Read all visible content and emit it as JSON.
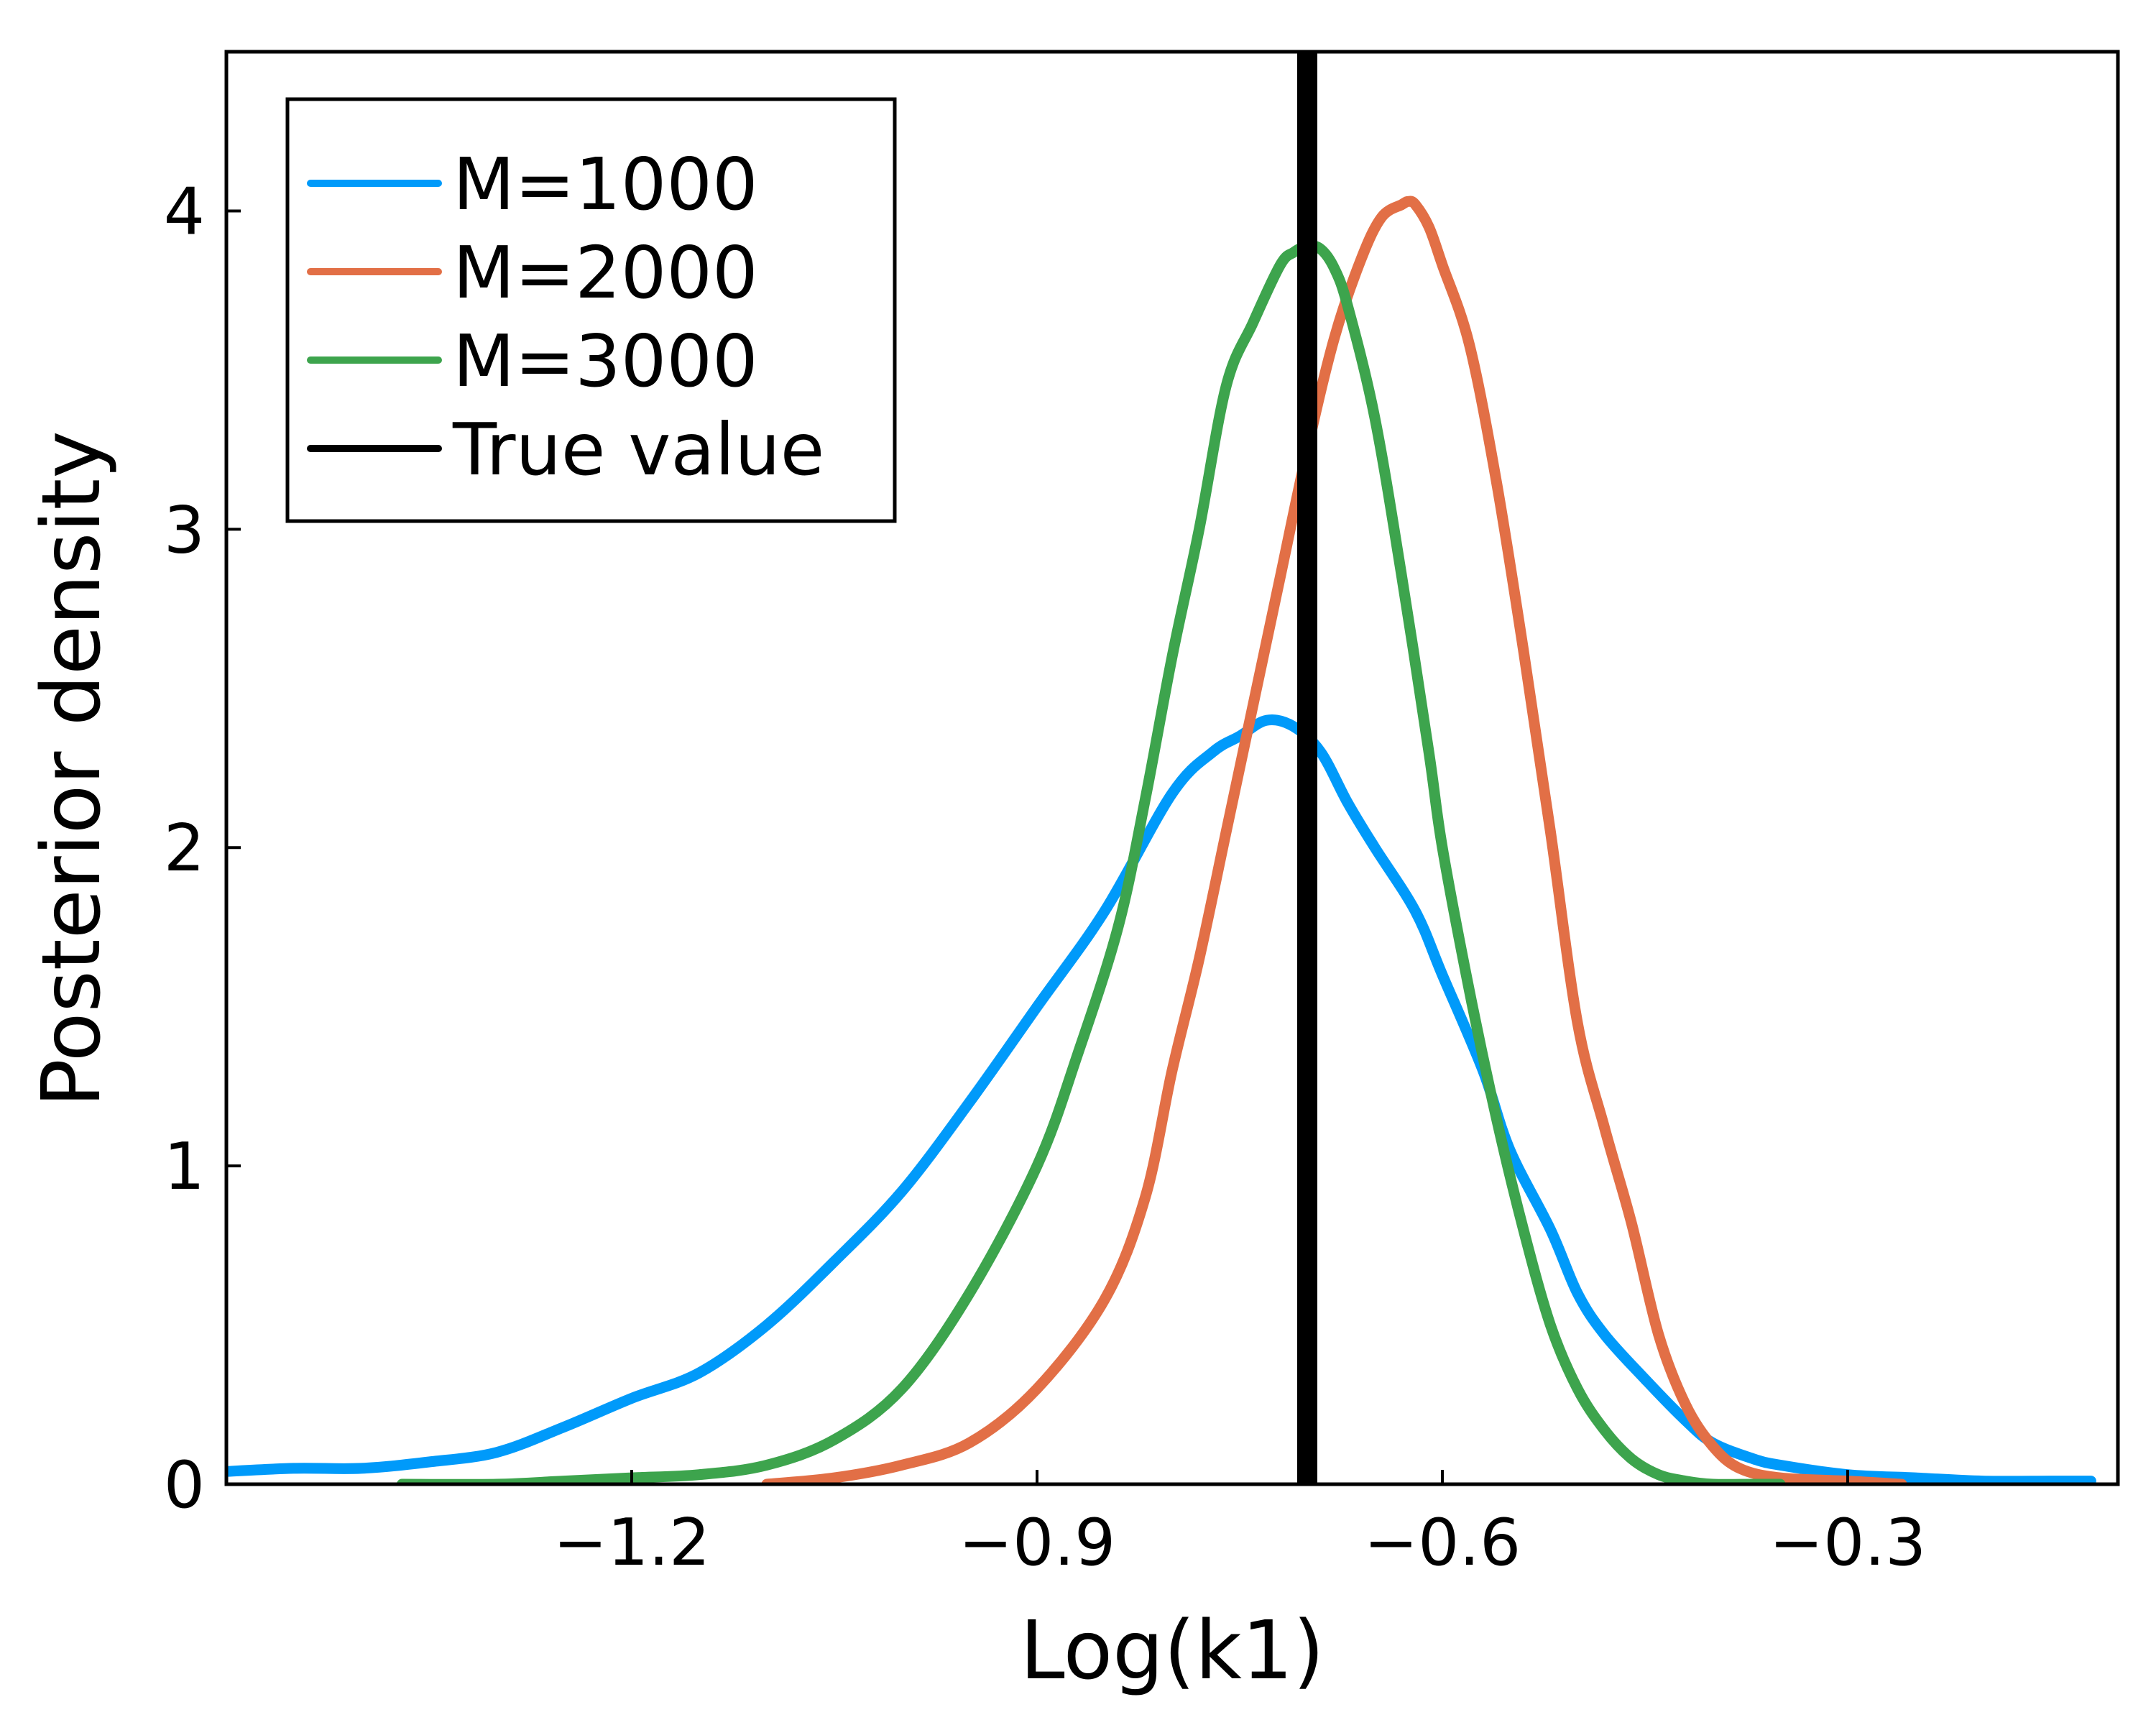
{
  "chart_data": {
    "type": "line",
    "title": "",
    "xlabel": "Log(k1)",
    "ylabel": "Posterior density",
    "xlim": [
      -1.5,
      -0.1
    ],
    "ylim": [
      0,
      4.5
    ],
    "x_ticks": [
      -1.2,
      -0.9,
      -0.6,
      -0.3
    ],
    "x_tick_labels": [
      "−1.2",
      "−0.9",
      "−0.6",
      "−0.3"
    ],
    "y_ticks": [
      0,
      1,
      2,
      3,
      4
    ],
    "y_tick_labels": [
      "0",
      "1",
      "2",
      "3",
      "4"
    ],
    "grid": false,
    "legend_position": "top-left",
    "true_value": -0.7,
    "true_value_label": "True value",
    "true_value_color": "#000000",
    "series": [
      {
        "name": "M=1000",
        "color": "#009AFA",
        "x": [
          -1.5,
          -1.45,
          -1.4,
          -1.35,
          -1.3,
          -1.25,
          -1.2,
          -1.15,
          -1.1,
          -1.05,
          -1.0,
          -0.95,
          -0.9,
          -0.85,
          -0.8,
          -0.77,
          -0.75,
          -0.73,
          -0.71,
          -0.69,
          -0.67,
          -0.65,
          -0.62,
          -0.6,
          -0.57,
          -0.55,
          -0.52,
          -0.5,
          -0.48,
          -0.45,
          -0.42,
          -0.4,
          -0.37,
          -0.35,
          -0.3,
          -0.25,
          -0.2,
          -0.15,
          -0.12
        ],
        "y": [
          0.04,
          0.05,
          0.05,
          0.07,
          0.1,
          0.18,
          0.27,
          0.35,
          0.5,
          0.7,
          0.92,
          1.2,
          1.5,
          1.8,
          2.17,
          2.3,
          2.35,
          2.4,
          2.38,
          2.3,
          2.14,
          2.0,
          1.8,
          1.6,
          1.3,
          1.05,
          0.8,
          0.6,
          0.47,
          0.33,
          0.2,
          0.13,
          0.08,
          0.06,
          0.03,
          0.02,
          0.01,
          0.01,
          0.01
        ],
        "y_approx": true
      },
      {
        "name": "M=2000",
        "color": "#E26F46",
        "x": [
          -1.1,
          -1.05,
          -1.0,
          -0.95,
          -0.9,
          -0.85,
          -0.82,
          -0.8,
          -0.78,
          -0.76,
          -0.74,
          -0.72,
          -0.7,
          -0.68,
          -0.66,
          -0.645,
          -0.63,
          -0.625,
          -0.62,
          -0.61,
          -0.6,
          -0.58,
          -0.56,
          -0.54,
          -0.52,
          -0.5,
          -0.48,
          -0.46,
          -0.44,
          -0.42,
          -0.4,
          -0.38,
          -0.35,
          -0.3,
          -0.26
        ],
        "y": [
          0.0,
          0.02,
          0.06,
          0.13,
          0.3,
          0.58,
          0.9,
          1.3,
          1.65,
          2.05,
          2.45,
          2.85,
          3.25,
          3.6,
          3.85,
          3.98,
          4.02,
          4.03,
          4.02,
          3.95,
          3.83,
          3.58,
          3.15,
          2.62,
          2.05,
          1.45,
          1.12,
          0.82,
          0.47,
          0.25,
          0.12,
          0.05,
          0.02,
          0.01,
          0.0
        ],
        "y_approx": true
      },
      {
        "name": "M=3000",
        "color": "#3DA44D",
        "x": [
          -1.37,
          -1.3,
          -1.25,
          -1.2,
          -1.15,
          -1.1,
          -1.05,
          -1.0,
          -0.95,
          -0.9,
          -0.87,
          -0.84,
          -0.82,
          -0.8,
          -0.78,
          -0.76,
          -0.74,
          -0.72,
          -0.71,
          -0.7,
          -0.69,
          -0.68,
          -0.67,
          -0.65,
          -0.63,
          -0.61,
          -0.6,
          -0.58,
          -0.56,
          -0.54,
          -0.52,
          -0.5,
          -0.48,
          -0.46,
          -0.44,
          -0.42,
          -0.4,
          -0.37,
          -0.35
        ],
        "y": [
          0.0,
          0.0,
          0.01,
          0.02,
          0.03,
          0.06,
          0.14,
          0.3,
          0.6,
          1.0,
          1.35,
          1.75,
          2.15,
          2.6,
          3.0,
          3.45,
          3.65,
          3.83,
          3.87,
          3.89,
          3.88,
          3.82,
          3.7,
          3.35,
          2.85,
          2.3,
          2.0,
          1.55,
          1.15,
          0.8,
          0.5,
          0.3,
          0.17,
          0.08,
          0.03,
          0.01,
          0.0,
          0.0,
          0.0
        ],
        "y_approx": true
      }
    ]
  }
}
